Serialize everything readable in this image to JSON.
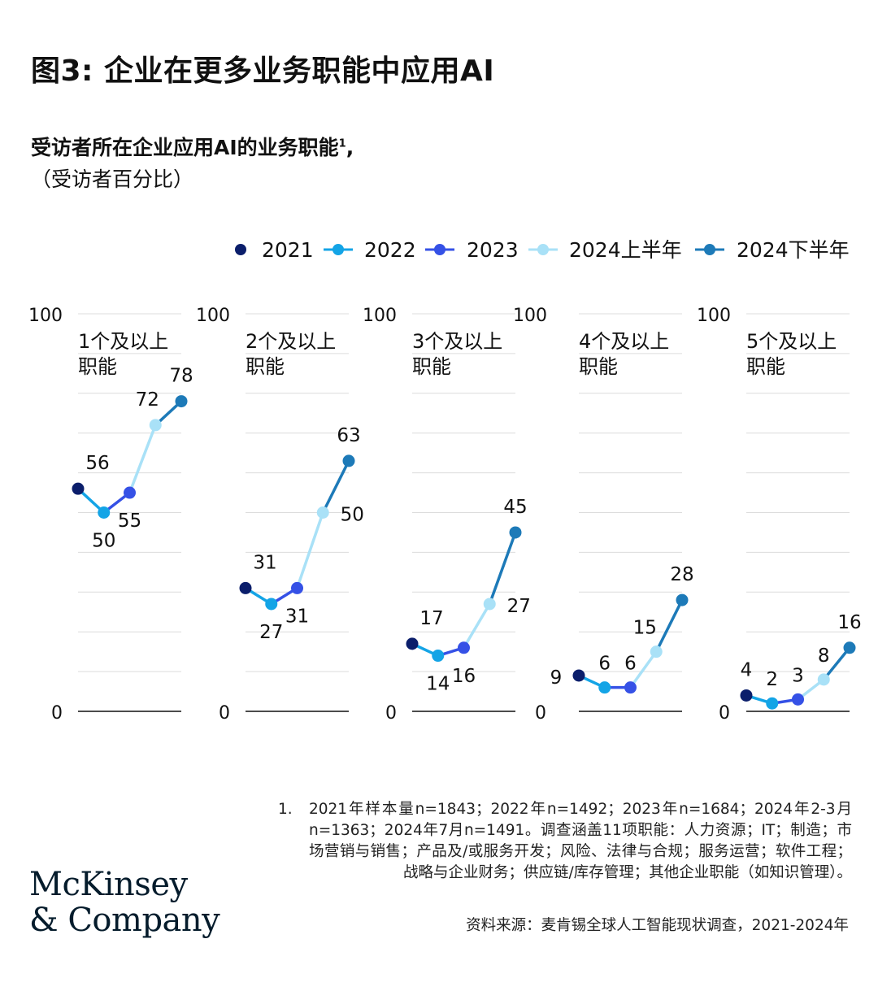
{
  "title": "图3: 企业在更多业务职能中应用AI",
  "subtitle": "受访者所在企业应用AI的业务职能",
  "subtitle_sup": "1",
  "subtitle_tail": ",",
  "unit": "（受访者百分比）",
  "footnote": {
    "number": "1.",
    "text": "2021年样本量n=1843；2022年n=1492；2023年n=1684；2024年2-3月n=1363；2024年7月n=1491。调查涵盖11项职能：人力资源；IT；制造；市场营销与销售；产品及/或服务开发；风险、法律与合规；服务运营；软件工程；战略与企业财务；供应链/库存管理；其他企业职能（如知识管理）。"
  },
  "source": "资料来源：麦肯锡全球人工智能现状调查，2021-2024年",
  "logo": {
    "line1": "McKinsey",
    "line2": "& Company"
  },
  "colors": {
    "2021": "#0b1e6b",
    "2022": "#14a4e6",
    "2023": "#3551e6",
    "2024上半年": "#a9e1f7",
    "2024下半年": "#1d7ab8",
    "grid": "#dcdcdc",
    "axis": "#111111"
  },
  "chart_data": {
    "type": "line",
    "series_names": [
      "2021",
      "2022",
      "2023",
      "2024上半年",
      "2024下半年"
    ],
    "legend_position": "top-right",
    "ylim": [
      0,
      100
    ],
    "y_ticks": [
      "0",
      "100"
    ],
    "grid": true,
    "panels": [
      {
        "label_lines": [
          "1个及以上",
          "职能"
        ],
        "values": [
          56,
          50,
          55,
          72,
          78
        ]
      },
      {
        "label_lines": [
          "2个及以上",
          "职能"
        ],
        "values": [
          31,
          27,
          31,
          50,
          63
        ]
      },
      {
        "label_lines": [
          "3个及以上",
          "职能"
        ],
        "values": [
          17,
          14,
          16,
          27,
          45
        ]
      },
      {
        "label_lines": [
          "4个及以上",
          "职能"
        ],
        "values": [
          9,
          6,
          6,
          15,
          28
        ]
      },
      {
        "label_lines": [
          "5个及以上",
          "职能"
        ],
        "values": [
          4,
          2,
          3,
          8,
          16
        ]
      }
    ]
  }
}
